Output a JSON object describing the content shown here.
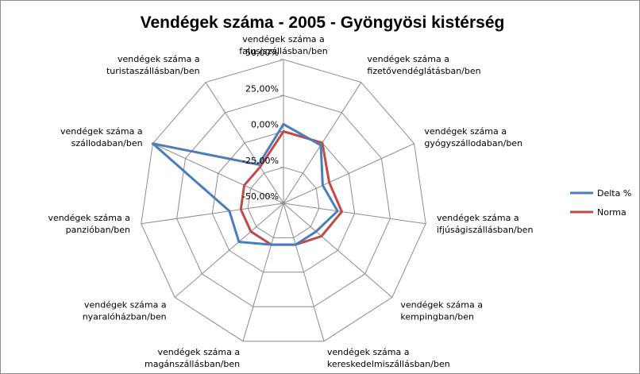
{
  "chart_data": {
    "type": "radar",
    "title": "Vendégek száma - 2005 - Gyöngyösi kistérség",
    "categories": [
      "vendégek száma a falusiszállásban/ben",
      "vendégek száma a fizetővendéglátásban/ben",
      "vendégek száma a gyógyszállodaban/ben",
      "vendégek száma a ifjúságiszállásban/ben",
      "vendégek száma a kempingban/ben",
      "vendégek száma a kereskedelmiszállásban/ben",
      "vendégek száma a magánszállásban/ben",
      "vendégek száma a nyaralóházban/ben",
      "vendégek száma a panzióban/ben",
      "vendégek száma a szállodaban/ben",
      "vendégek száma a turistaszállásban/ben"
    ],
    "ticks": [
      "-50,00%",
      "-25,00%",
      "0,00%",
      "25,00%",
      "50,00%"
    ],
    "rlim": [
      -50,
      50
    ],
    "grid": true,
    "legend_position": "right",
    "series": [
      {
        "name": "Delta %",
        "color": "#4a7ebb",
        "values": [
          5,
          -2,
          -20,
          -12,
          -20,
          -20,
          -20,
          -9,
          -12,
          50,
          -18
        ]
      },
      {
        "name": "Norma",
        "color": "#be4b48",
        "values": [
          0,
          0,
          -15,
          -9,
          -15,
          -20,
          -20,
          -20,
          -20,
          -20,
          -20
        ]
      }
    ]
  }
}
